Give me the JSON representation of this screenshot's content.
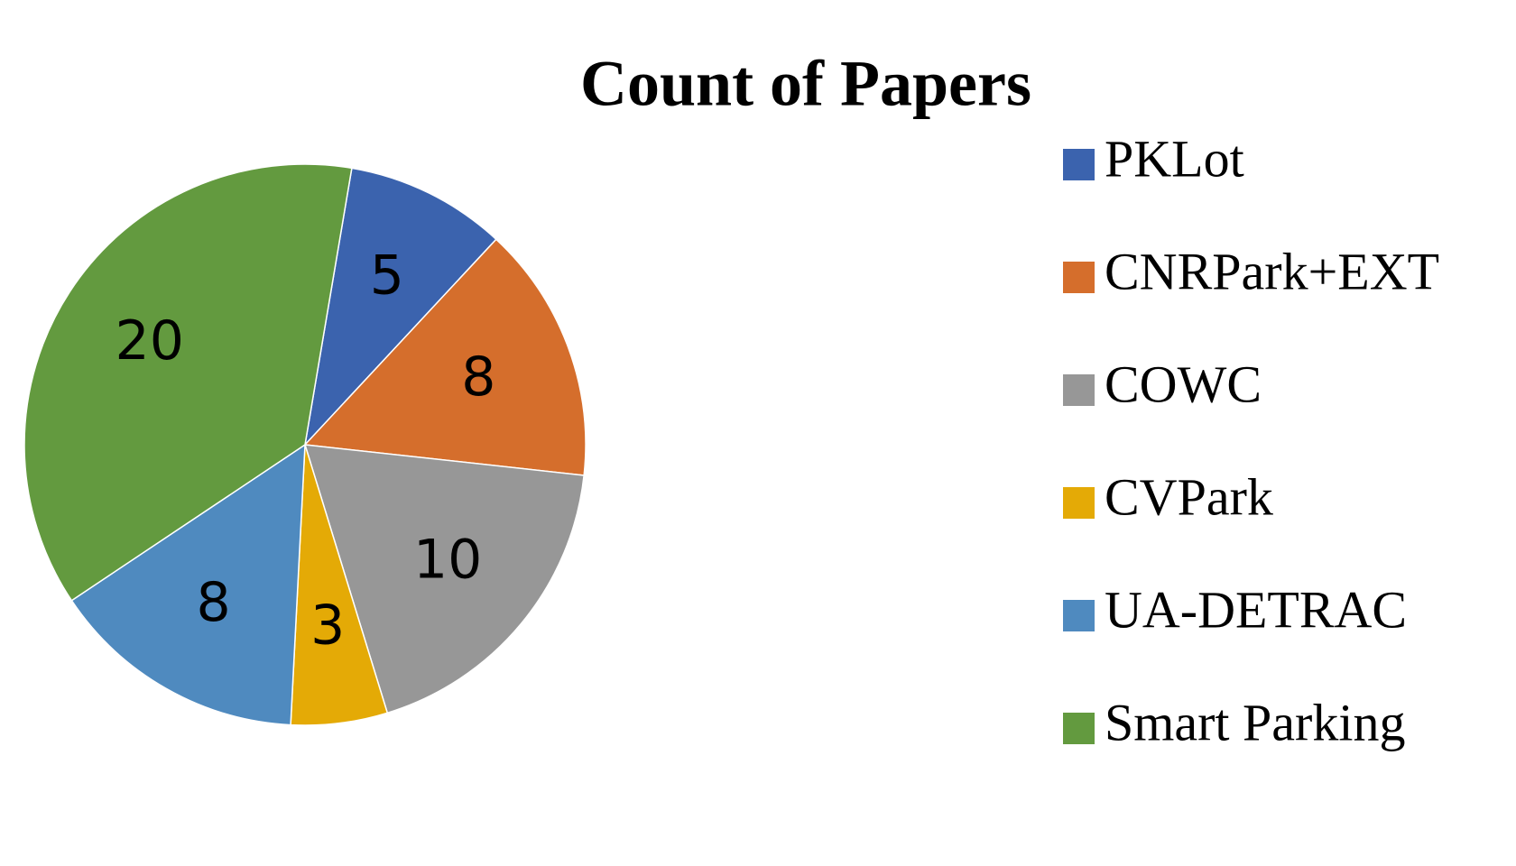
{
  "chart_data": {
    "type": "pie",
    "title": "Count of Papers",
    "categories": [
      "PKLot",
      "CNRPark+EXT",
      "COWC",
      "CVPark",
      "UA-DETRAC",
      "Smart Parking"
    ],
    "values": [
      5,
      8,
      10,
      3,
      8,
      20
    ],
    "colors": [
      "#3b63ae",
      "#d56e2c",
      "#979797",
      "#e4aa06",
      "#4f8abf",
      "#639a3f"
    ],
    "legend": "right"
  }
}
